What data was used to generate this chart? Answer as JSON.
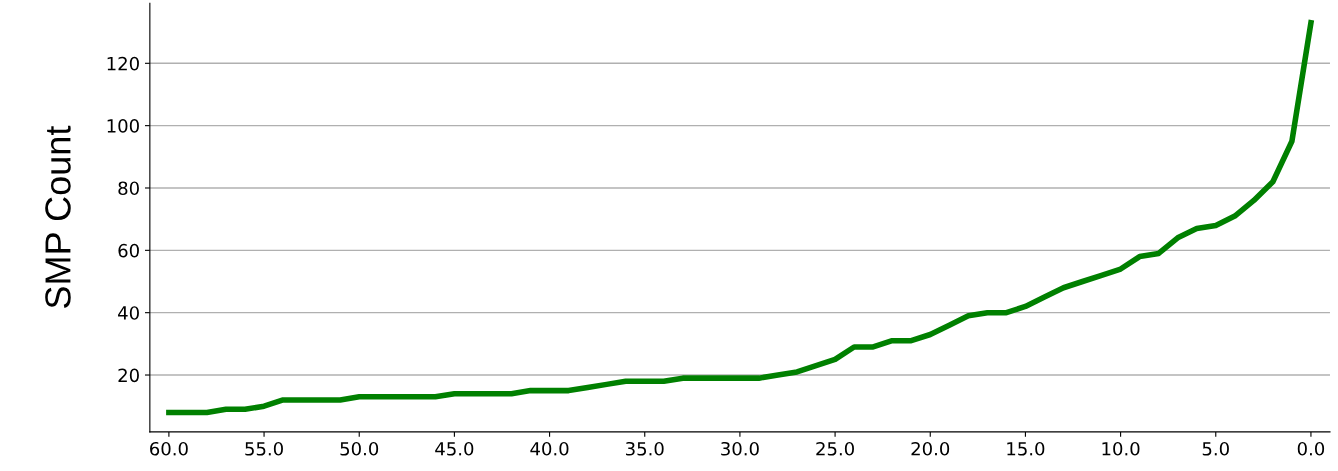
{
  "chart_data": {
    "type": "line",
    "ylabel": "SMP Count",
    "x": [
      60,
      59,
      58,
      57,
      56,
      55,
      54,
      53,
      52,
      51,
      50,
      49,
      48,
      47,
      46,
      45,
      44,
      43,
      42,
      41,
      40,
      39,
      38,
      37,
      36,
      35,
      34,
      33,
      32,
      31,
      30,
      29,
      28,
      27,
      26,
      25,
      24,
      23,
      22,
      21,
      20,
      19,
      18,
      17,
      16,
      15,
      14,
      13,
      12,
      11,
      10,
      9,
      8,
      7,
      6,
      5,
      4,
      3,
      2,
      1,
      0
    ],
    "series": [
      {
        "color": "#008000",
        "values": [
          8,
          8,
          8,
          9,
          9,
          10,
          12,
          12,
          12,
          12,
          13,
          13,
          13,
          13,
          13,
          14,
          14,
          14,
          14,
          15,
          15,
          15,
          16,
          17,
          18,
          18,
          18,
          19,
          19,
          19,
          19,
          19,
          20,
          21,
          23,
          25,
          29,
          29,
          31,
          31,
          33,
          36,
          39,
          40,
          40,
          42,
          45,
          48,
          50,
          52,
          54,
          58,
          59,
          64,
          67,
          68,
          71,
          76,
          82,
          95,
          133
        ]
      }
    ],
    "xlim": [
      61,
      -1
    ],
    "ylim": [
      1.75,
      139.25
    ],
    "xticks": [
      {
        "value": 60,
        "label": "60.0"
      },
      {
        "value": 55,
        "label": "55.0"
      },
      {
        "value": 50,
        "label": "50.0"
      },
      {
        "value": 45,
        "label": "45.0"
      },
      {
        "value": 40,
        "label": "40.0"
      },
      {
        "value": 35,
        "label": "35.0"
      },
      {
        "value": 30,
        "label": "30.0"
      },
      {
        "value": 25,
        "label": "25.0"
      },
      {
        "value": 20,
        "label": "20.0"
      },
      {
        "value": 15,
        "label": "15.0"
      },
      {
        "value": 10,
        "label": "10.0"
      },
      {
        "value": 5,
        "label": "5.0"
      },
      {
        "value": 0,
        "label": "0.0"
      }
    ],
    "yticks": [
      20,
      40,
      60,
      80,
      100,
      120
    ],
    "grid": "y",
    "line_style": "solid"
  }
}
